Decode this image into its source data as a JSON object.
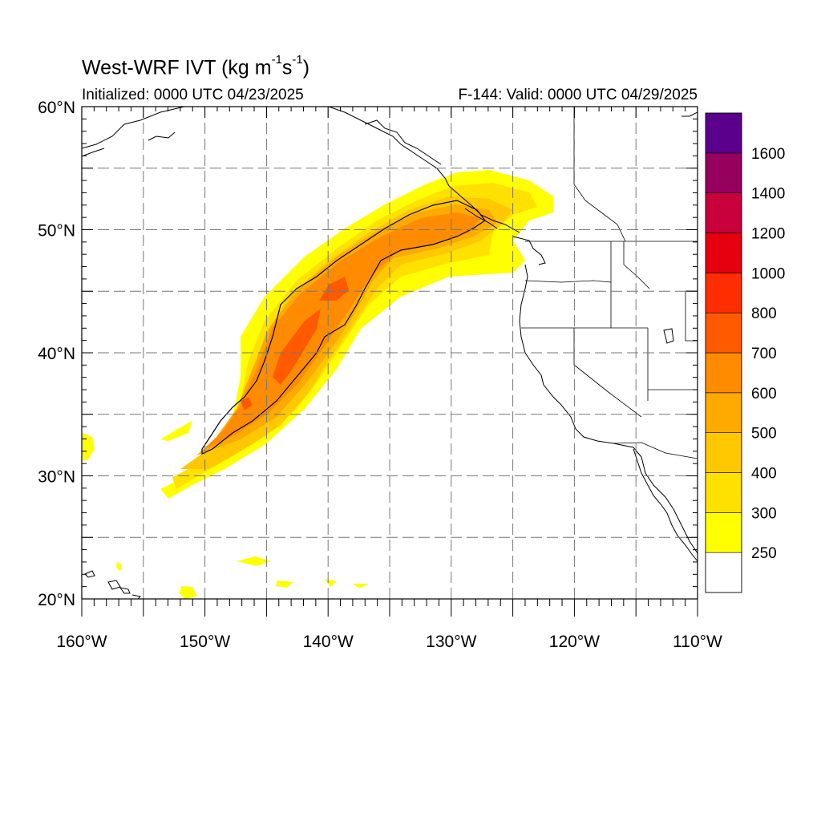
{
  "title": {
    "main": "West-WRF IVT (kg m",
    "sup1": "-1",
    "mid": "s",
    "sup2": "-1",
    "end": ")"
  },
  "initialized": "Initialized: 0000 UTC 04/23/2025",
  "valid": "F-144: Valid: 0000 UTC 04/29/2025",
  "map": {
    "lon_range": [
      -160,
      -110
    ],
    "lat_range": [
      20,
      60
    ],
    "grid": true,
    "grid_style": "dashed",
    "projection": "cylindrical-equidistant",
    "lat_labels": [
      "60°N",
      "50°N",
      "40°N",
      "30°N",
      "20°N"
    ],
    "lon_labels": [
      "160°W",
      "150°W",
      "140°W",
      "130°W",
      "120°W",
      "110°W"
    ],
    "lat_values": [
      60,
      50,
      40,
      30,
      20
    ],
    "lon_values": [
      -160,
      -150,
      -140,
      -130,
      -120,
      -110
    ],
    "field": "integrated vapor transport",
    "feature": "atmospheric river from subtropical Pacific to Pacific Northwest / British Columbia coast"
  },
  "colorbar": {
    "labels": [
      "250",
      "300",
      "400",
      "500",
      "600",
      "700",
      "800",
      "1000",
      "1200",
      "1400",
      "1600"
    ],
    "levels": [
      250,
      300,
      400,
      500,
      600,
      700,
      800,
      1000,
      1200,
      1400,
      1600
    ],
    "colors": [
      "#ffffff",
      "#ffff00",
      "#ffe100",
      "#ffc800",
      "#ffaa00",
      "#ff8c00",
      "#ff5a00",
      "#ff2d00",
      "#e6000f",
      "#c8003c",
      "#96005f",
      "#5a008c"
    ]
  }
}
